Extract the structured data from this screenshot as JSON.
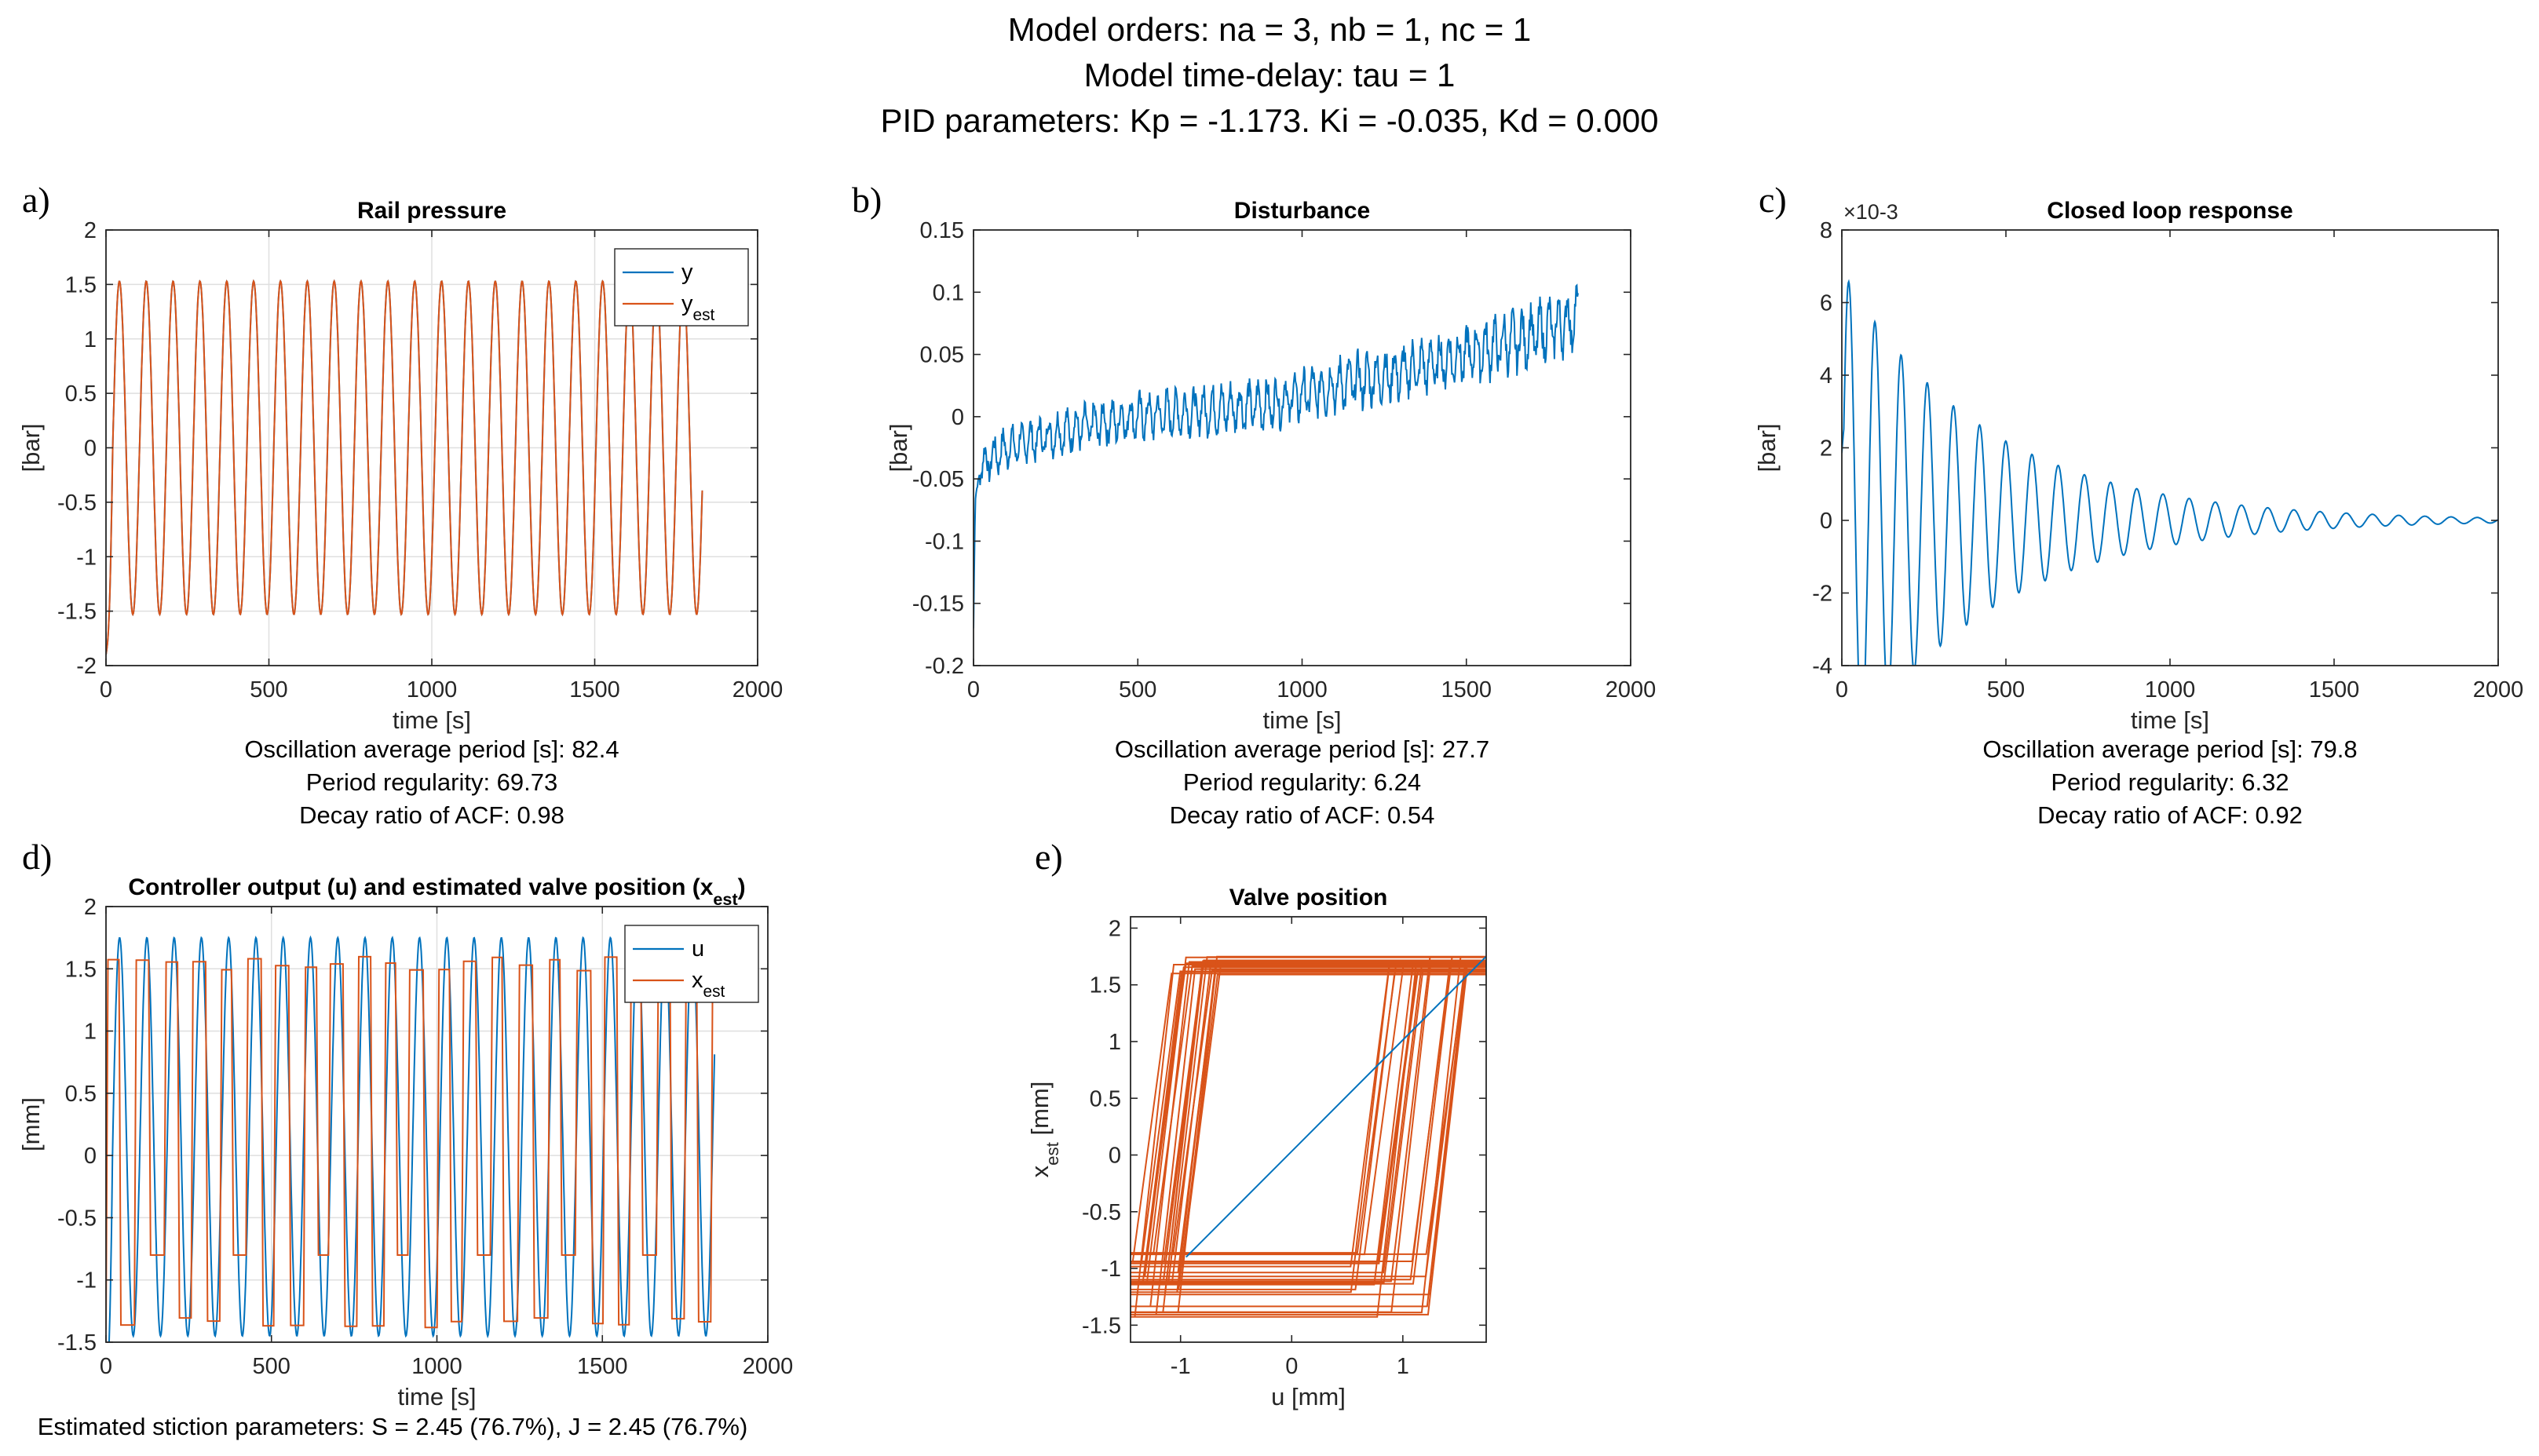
{
  "figure": {
    "header": [
      "Model orders: na = 3, nb = 1, nc = 1",
      "Model time-delay: tau = 1",
      "PID parameters: Kp = -1.173. Ki = -0.035, Kd = 0.000"
    ]
  },
  "colors": {
    "blue": "#0072BD",
    "orange": "#D95319",
    "grid": "#DFDFDF",
    "axis": "#262626"
  },
  "chart_data": [
    {
      "id": "a",
      "panel_label": "a)",
      "type": "line",
      "title": "Rail pressure",
      "xlabel": "time [s]",
      "ylabel": "[bar]",
      "xlim": [
        0,
        2000
      ],
      "ylim": [
        -2,
        2
      ],
      "xticks": [
        0,
        500,
        1000,
        1500,
        2000
      ],
      "yticks": [
        -2,
        -1.5,
        -1,
        -0.5,
        0,
        0.5,
        1,
        1.5,
        2
      ],
      "grid": true,
      "legend_position": "top-right",
      "legend": [
        {
          "label": "y",
          "sub": ""
        },
        {
          "label": "y",
          "sub": "est"
        }
      ],
      "series": [
        {
          "name": "y",
          "color": "blue",
          "model": "sine",
          "x_range": [
            0,
            1830
          ],
          "period": 82.4,
          "amplitude": 1.53
        },
        {
          "name": "y_est",
          "color": "orange",
          "model": "sine",
          "x_range": [
            0,
            1830
          ],
          "period": 82.4,
          "amplitude": 1.53
        }
      ],
      "notes": [
        "Oscillation average period [s]: 82.4",
        "Period regularity: 69.73",
        "Decay ratio of ACF: 0.98"
      ]
    },
    {
      "id": "b",
      "panel_label": "b)",
      "type": "line",
      "title": "Disturbance",
      "xlabel": "time [s]",
      "ylabel": "[bar]",
      "xlim": [
        0,
        2000
      ],
      "ylim": [
        -0.2,
        0.15
      ],
      "xticks": [
        0,
        500,
        1000,
        1500,
        2000
      ],
      "yticks": [
        -0.2,
        -0.15,
        -0.1,
        -0.05,
        0,
        0.05,
        0.1,
        0.15
      ],
      "grid": false,
      "series": [
        {
          "name": "disturbance",
          "color": "blue",
          "model": "noisy-trend",
          "x_range": [
            0,
            1840
          ],
          "points": [
            [
              0,
              -0.17
            ],
            [
              5,
              -0.07
            ],
            [
              20,
              -0.04
            ],
            [
              100,
              -0.025
            ],
            [
              300,
              -0.01
            ],
            [
              500,
              0.0
            ],
            [
              700,
              0.005
            ],
            [
              900,
              0.01
            ],
            [
              1100,
              0.025
            ],
            [
              1300,
              0.035
            ],
            [
              1500,
              0.05
            ],
            [
              1700,
              0.065
            ],
            [
              1840,
              0.08
            ]
          ],
          "ripple": 0.012,
          "ripple_period": 27.7
        }
      ],
      "notes": [
        "Oscillation average period [s]: 27.7",
        "Period regularity: 6.24",
        "Decay ratio of ACF: 0.54"
      ]
    },
    {
      "id": "c",
      "panel_label": "c)",
      "type": "line",
      "title": "Closed loop response",
      "xlabel": "time [s]",
      "ylabel": "[bar]",
      "xlim": [
        0,
        2000
      ],
      "ylim": [
        -4,
        8
      ],
      "exponent_label": "×10",
      "exponent": "-3",
      "xticks": [
        0,
        500,
        1000,
        1500,
        2000
      ],
      "yticks": [
        -4,
        -2,
        0,
        2,
        4,
        6,
        8
      ],
      "grid": false,
      "series": [
        {
          "name": "response",
          "color": "blue",
          "model": "damped-sine",
          "x_range": [
            0,
            2000
          ],
          "period": 79.8,
          "amplitude": 6.9,
          "decay": 0.0023
        }
      ],
      "notes": [
        "Oscillation average period [s]: 79.8",
        "Period regularity: 6.32",
        "Decay ratio of ACF: 0.92"
      ]
    },
    {
      "id": "d",
      "panel_label": "d)",
      "type": "line",
      "title": "Controller output (u) and estimated valve position (x",
      "title_sub": "est",
      "title_end": ")",
      "xlabel": "time [s]",
      "ylabel": "[mm]",
      "xlim": [
        0,
        2000
      ],
      "ylim": [
        -1.5,
        2
      ],
      "xticks": [
        0,
        500,
        1000,
        1500,
        2000
      ],
      "yticks": [
        -1.5,
        -1,
        -0.5,
        0,
        0.5,
        1,
        1.5,
        2
      ],
      "grid": true,
      "legend_position": "top-right",
      "legend": [
        {
          "label": "u",
          "sub": ""
        },
        {
          "label": "x",
          "sub": "est"
        }
      ],
      "series": [
        {
          "name": "u",
          "color": "blue",
          "model": "sine",
          "x_range": [
            0,
            1840
          ],
          "period": 82.4,
          "amplitude": 1.6,
          "offset": 0.15
        },
        {
          "name": "x_est",
          "color": "orange",
          "model": "stiction",
          "x_range": [
            0,
            1840
          ],
          "period": 82.4,
          "high": 1.6,
          "low": -1.4
        }
      ],
      "notes": [
        "Estimated stiction parameters: S = 2.45 (76.7%), J = 2.45 (76.7%)"
      ]
    },
    {
      "id": "e",
      "panel_label": "e)",
      "type": "line",
      "title": "Valve position",
      "xlabel": "u [mm]",
      "ylabel": "x",
      "ylabel_sub": "est",
      "ylabel_end": " [mm]",
      "xlim": [
        -1.45,
        1.75
      ],
      "ylim": [
        -1.65,
        2.1
      ],
      "xticks": [
        -1,
        0,
        1
      ],
      "yticks": [
        -1.5,
        -1,
        -0.5,
        0,
        0.5,
        1,
        1.5,
        2
      ],
      "grid": false,
      "series": [
        {
          "name": "x_est vs u",
          "color": "orange",
          "model": "hysteresis-loops",
          "loops": 22,
          "top": [
            1.58,
            1.75
          ],
          "bottom": [
            -1.45,
            -0.8
          ],
          "left_u": [
            -1.45,
            -0.95
          ],
          "right_u": [
            0.85,
            1.72
          ]
        },
        {
          "name": "diagonal",
          "color": "blue",
          "model": "line",
          "points": [
            [
              -0.95,
              -0.9
            ],
            [
              1.75,
              1.75
            ]
          ]
        }
      ],
      "notes": []
    }
  ]
}
